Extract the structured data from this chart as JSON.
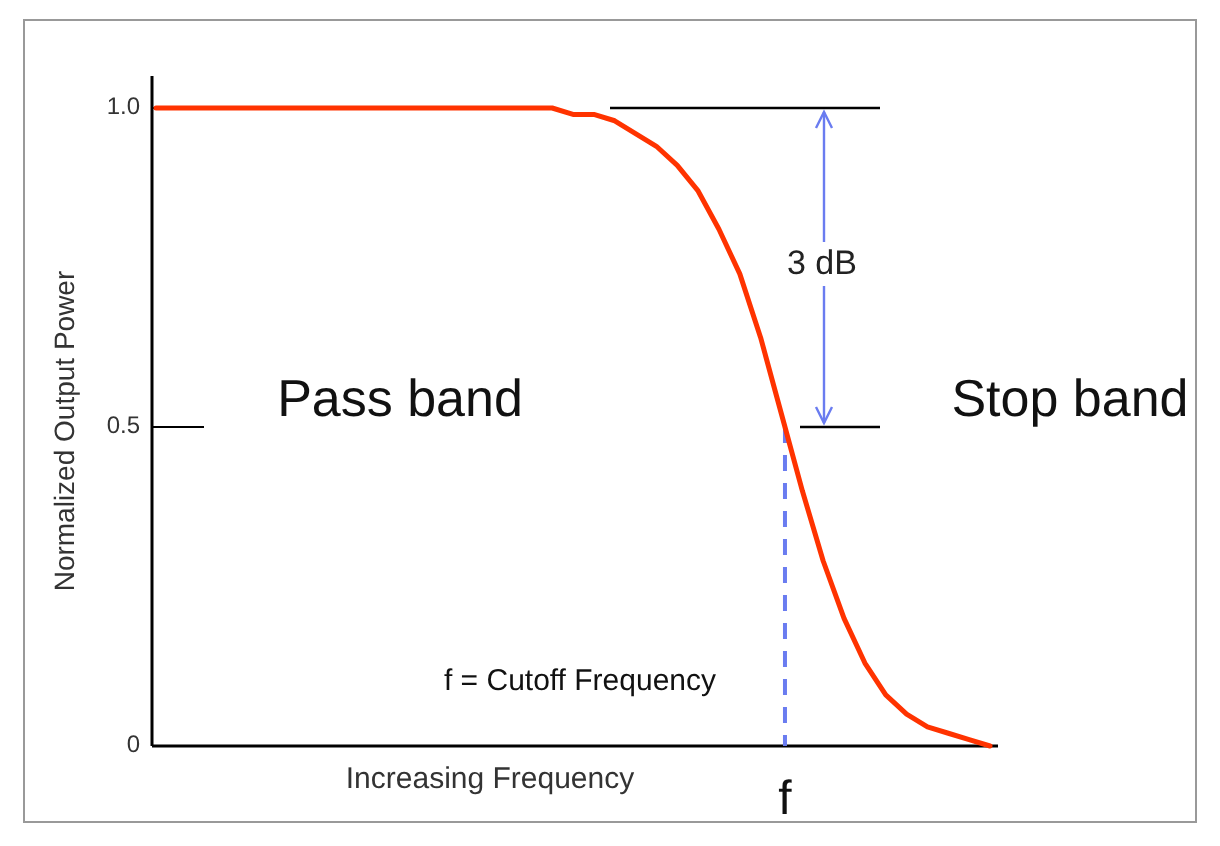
{
  "chart_data": {
    "type": "line",
    "xlabel": "Increasing Frequency",
    "ylabel": "Normalized Output Power",
    "categories": [
      null,
      null,
      null,
      null,
      null,
      null,
      null,
      null,
      null,
      null,
      null,
      null,
      null,
      null,
      null,
      null,
      null,
      null,
      null,
      null,
      null,
      null,
      null,
      null,
      null,
      null,
      null,
      null,
      null,
      null,
      null,
      null,
      null,
      null,
      null,
      null,
      null,
      null,
      null,
      null,
      null
    ],
    "series": [
      {
        "color": "#ff3300",
        "values": [
          1,
          1,
          1,
          1,
          1,
          1,
          1,
          1,
          1,
          1,
          1,
          1,
          1,
          1,
          1,
          1,
          1,
          1,
          1,
          1,
          0.99,
          0.99,
          0.98,
          0.96,
          0.94,
          0.91,
          0.87,
          0.81,
          0.74,
          0.64,
          0.52,
          0.4,
          0.29,
          0.2,
          0.13,
          0.08,
          0.05,
          0.03,
          0.02,
          0.01,
          0
        ]
      }
    ],
    "ylim": [
      0,
      1.05
    ],
    "yticks": [
      {
        "value": 0,
        "label": "0"
      },
      {
        "value": 0.5,
        "label": "0.5"
      },
      {
        "value": 1,
        "label": "1.0"
      }
    ],
    "ref_lines": [
      {
        "axis": "y",
        "value": 1,
        "color": "#000000"
      },
      {
        "axis": "y",
        "value": 0.5,
        "color": "#000000"
      }
    ],
    "annotations": [
      "Pass band",
      "Stop band",
      "3 dB",
      "f = Cutoff Frequency",
      "f"
    ],
    "grid": false,
    "marker": "none",
    "line_style": "solid",
    "tick_labels": "y"
  }
}
